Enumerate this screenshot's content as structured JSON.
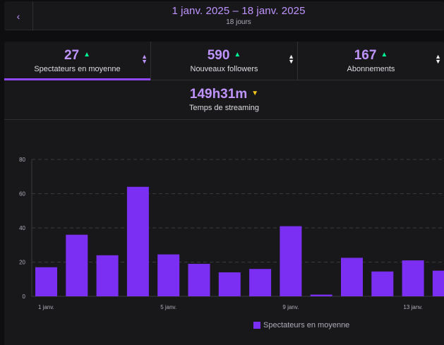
{
  "header": {
    "back_icon": "chevron-left-icon",
    "range": "1 janv. 2025 – 18 janv. 2025",
    "days": "18 jours"
  },
  "tabs": [
    {
      "value": "27",
      "label": "Spectateurs en moyenne",
      "trend": "up",
      "active": true
    },
    {
      "value": "590",
      "label": "Nouveaux followers",
      "trend": "up",
      "active": false
    },
    {
      "value": "167",
      "label": "Abonnements",
      "trend": "up",
      "active": false
    }
  ],
  "tab_streaming": {
    "value": "149h31m",
    "label": "Temps de streaming",
    "trend": "down"
  },
  "colors": {
    "accent": "#bf94ff",
    "bar": "#7b2ff2",
    "up": "#00f593",
    "down": "#f5c518"
  },
  "chart_data": {
    "type": "bar",
    "categories": [
      "1 janv.",
      "2 janv.",
      "3 janv.",
      "4 janv.",
      "5 janv.",
      "6 janv.",
      "7 janv.",
      "8 janv.",
      "9 janv.",
      "10 janv.",
      "11 janv.",
      "12 janv.",
      "13 janv.",
      "14 janv."
    ],
    "x_tick_labels": [
      "1 janv.",
      "5 janv.",
      "9 janv.",
      "13 janv."
    ],
    "values": [
      17,
      36,
      24,
      64,
      24.5,
      19,
      14,
      16,
      41,
      1,
      22.5,
      14.5,
      21,
      15
    ],
    "ylim": [
      0,
      80
    ],
    "yticks": [
      0,
      20,
      40,
      60,
      80
    ],
    "grid": true,
    "legend": "Spectateurs en moyenne",
    "legend_position": "bottom-center"
  }
}
